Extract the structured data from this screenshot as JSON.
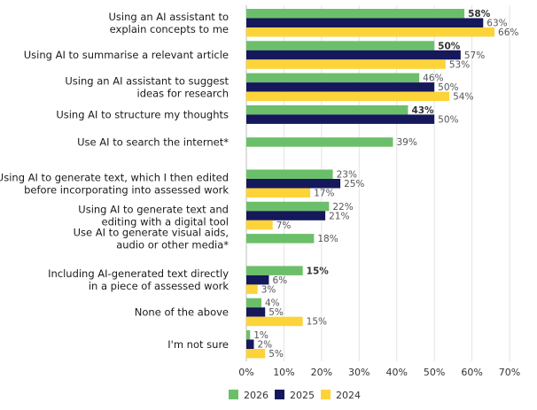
{
  "chart_data": {
    "type": "bar",
    "orientation": "horizontal",
    "categories": [
      [
        "Using an AI assistant to",
        "explain concepts to me"
      ],
      [
        "Using AI to summarise a relevant article"
      ],
      [
        "Using an AI assistant to suggest",
        "ideas for research"
      ],
      [
        "Using AI to structure my thoughts"
      ],
      [
        "Use AI to search the internet*"
      ],
      [
        "Using AI to generate text, which I then edited",
        "before incorporating into assessed work"
      ],
      [
        "Using AI to generate text and",
        "editing with a digital tool"
      ],
      [
        "Use AI to generate visual aids,",
        "audio or other media*"
      ],
      [
        "Including AI-generated text directly",
        "in a piece of assessed work"
      ],
      [
        "None of the above"
      ],
      [
        "I'm not sure"
      ]
    ],
    "series": [
      {
        "name": "2026",
        "color": "#6cbf6a",
        "values": [
          58,
          50,
          46,
          43,
          39,
          23,
          22,
          18,
          15,
          4,
          1
        ],
        "labels": [
          "58%",
          "50%",
          "46%",
          "43%",
          "39%",
          "23%",
          "22%",
          "18%",
          "15%",
          "4%",
          "1%"
        ]
      },
      {
        "name": "2025",
        "color": "#15185a",
        "values": [
          63,
          57,
          50,
          50,
          null,
          25,
          21,
          null,
          6,
          5,
          2
        ],
        "labels": [
          "63%",
          "57%",
          "50%",
          "50%",
          "",
          "25%",
          "21%",
          "",
          "6%",
          "5%",
          "2%"
        ]
      },
      {
        "name": "2024",
        "color": "#fdd33a",
        "values": [
          66,
          53,
          54,
          null,
          null,
          17,
          7,
          null,
          3,
          15,
          5
        ],
        "labels": [
          "66%",
          "53%",
          "54%",
          "",
          "",
          "17%",
          "7%",
          "",
          "3%",
          "15%",
          "5%"
        ]
      }
    ],
    "bold_labels": [
      [
        0,
        0
      ],
      [
        1,
        0
      ],
      [
        3,
        0
      ],
      [
        8,
        0
      ]
    ],
    "xlim": [
      0,
      70
    ],
    "xticks": [
      0,
      10,
      20,
      30,
      40,
      50,
      60,
      70
    ],
    "xtick_labels": [
      "0%",
      "10%",
      "20%",
      "30%",
      "40%",
      "50%",
      "60%",
      "70%"
    ],
    "grid": true,
    "legend_position": "bottom"
  }
}
